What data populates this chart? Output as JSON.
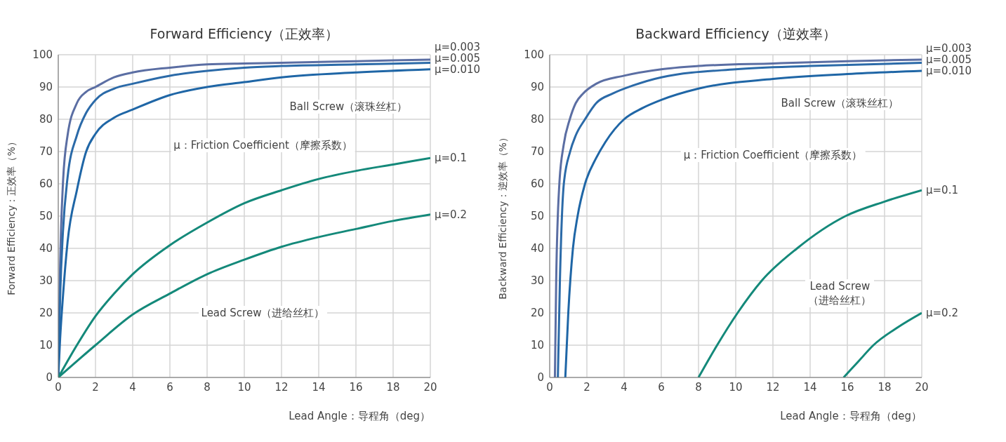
{
  "chart_data": [
    {
      "type": "line",
      "title": "Forward Efficiency（正效率）",
      "xlabel": "Lead Angle：导程角（deg）",
      "ylabel": "Forward Efficiency：正效率（%）",
      "xlim": [
        0,
        20
      ],
      "xticks": [
        0,
        2,
        4,
        6,
        8,
        10,
        12,
        14,
        16,
        18,
        20
      ],
      "ylim": [
        0,
        100
      ],
      "yticks": [
        0,
        10,
        20,
        30,
        40,
        50,
        60,
        70,
        80,
        90,
        100
      ],
      "grid": true,
      "legend": false,
      "marker": "none",
      "line_style": "solid",
      "annotations": [
        "Ball Screw（滚珠丝杠）",
        "μ：Friction Coefficient（摩擦系数）",
        "Lead Screw（进给丝杠）"
      ],
      "series": [
        {
          "name": "μ=0.003",
          "color": "#5b6ea3",
          "x": [
            0,
            0.1,
            0.25,
            0.5,
            1,
            1.5,
            2,
            3,
            4,
            6,
            8,
            10,
            12,
            16,
            20
          ],
          "values": [
            0,
            35,
            60,
            75,
            85,
            88.5,
            90,
            93,
            94.5,
            96,
            97,
            97.3,
            97.5,
            98,
            98.5
          ]
        },
        {
          "name": "μ=0.005",
          "color": "#2b6aa8",
          "x": [
            0,
            0.1,
            0.25,
            0.5,
            1,
            1.5,
            2,
            3,
            4,
            6,
            8,
            10,
            12,
            16,
            20
          ],
          "values": [
            0,
            25,
            45,
            62,
            75,
            82,
            86,
            89.5,
            91,
            93.5,
            95,
            96,
            96.5,
            97,
            97.5
          ]
        },
        {
          "name": "μ=0.010",
          "color": "#1f66a6",
          "x": [
            0,
            0.1,
            0.25,
            0.5,
            1,
            1.5,
            2,
            3,
            4,
            6,
            8,
            10,
            12,
            16,
            20
          ],
          "values": [
            0,
            12,
            25,
            42,
            58,
            70,
            75.5,
            80.5,
            83,
            87.5,
            90,
            91.5,
            93,
            94.5,
            95.5
          ]
        },
        {
          "name": "μ=0.1",
          "color": "#14897a",
          "x": [
            0,
            1,
            2,
            3,
            4,
            6,
            8,
            10,
            12,
            14,
            16,
            18,
            20
          ],
          "values": [
            0,
            10,
            19,
            26,
            32,
            41,
            48,
            54,
            58,
            61.5,
            64,
            66,
            68
          ]
        },
        {
          "name": "μ=0.2",
          "color": "#14897a",
          "x": [
            0,
            2,
            4,
            6,
            8,
            10,
            12,
            14,
            16,
            18,
            20
          ],
          "values": [
            0,
            10,
            19.5,
            26,
            32,
            36.5,
            40.5,
            43.5,
            46,
            48.5,
            50.5
          ]
        }
      ]
    },
    {
      "type": "line",
      "title": "Backward Efficiency（逆效率）",
      "xlabel": "Lead Angle：导程角（deg）",
      "ylabel": "Backward Efficiency：逆效率（%）",
      "xlim": [
        0,
        20
      ],
      "xticks": [
        0,
        2,
        4,
        6,
        8,
        10,
        12,
        14,
        16,
        18,
        20
      ],
      "ylim": [
        0,
        100
      ],
      "yticks": [
        0,
        10,
        20,
        30,
        40,
        50,
        60,
        70,
        80,
        90,
        100
      ],
      "grid": true,
      "legend": false,
      "marker": "none",
      "line_style": "solid",
      "annotations": [
        "Ball Screw（滚珠丝杠）",
        "μ：Friction Coefficient（摩擦系数）",
        "Lead Screw\n（进给丝杠）"
      ],
      "series": [
        {
          "name": "μ=0.003",
          "color": "#5b6ea3",
          "x": [
            0.28,
            0.35,
            0.52,
            0.75,
            1.08,
            1.4,
            1.8,
            2.5,
            4,
            6,
            8,
            12,
            16,
            20
          ],
          "values": [
            0,
            30,
            60,
            72,
            80,
            85,
            88,
            91,
            93.5,
            95.5,
            96.5,
            97.3,
            98,
            98.5
          ]
        },
        {
          "name": "μ=0.005",
          "color": "#2b6aa8",
          "x": [
            0.44,
            0.55,
            0.76,
            1.1,
            1.4,
            1.9,
            2.5,
            3.4,
            4.5,
            6,
            10,
            14,
            20
          ],
          "values": [
            0,
            30,
            60,
            70,
            75,
            80,
            85,
            88,
            90.5,
            93,
            95.5,
            96.5,
            97.5
          ]
        },
        {
          "name": "μ=0.010",
          "color": "#1f66a6",
          "x": [
            0.84,
            1.0,
            1.25,
            1.5,
            1.9,
            2.5,
            3,
            4,
            5,
            6,
            8,
            12,
            16,
            20
          ],
          "values": [
            0,
            20,
            40,
            50,
            60,
            68,
            73,
            80,
            83.5,
            86,
            89.5,
            92.5,
            94,
            95
          ]
        },
        {
          "name": "μ=0.1",
          "color": "#14897a",
          "x": [
            8,
            9,
            10.1,
            11.4,
            13.3,
            15.9,
            18,
            20
          ],
          "values": [
            0,
            10,
            20,
            30,
            40,
            50,
            54.5,
            58
          ]
        },
        {
          "name": "μ=0.2",
          "color": "#14897a",
          "x": [
            15.8,
            16.6,
            17.4,
            18.7,
            20
          ],
          "values": [
            0,
            5,
            10,
            15.5,
            20
          ]
        }
      ]
    }
  ]
}
